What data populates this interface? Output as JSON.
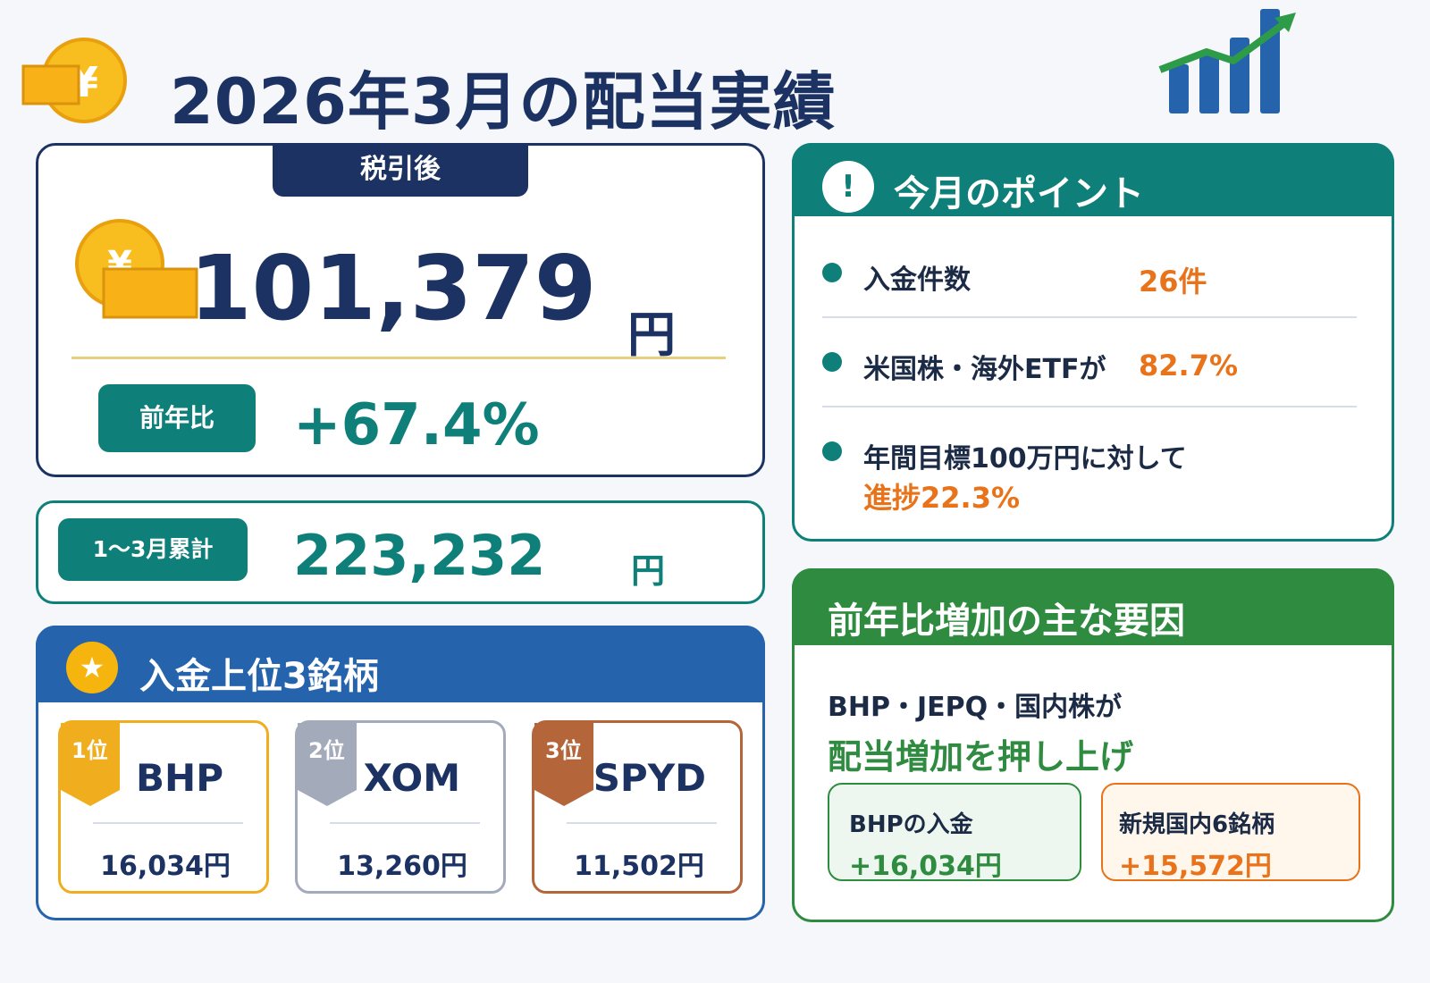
{
  "header": {
    "title": "2026年3月の配当実績",
    "coin_icon": "yen-coin-icon",
    "chart_icon": "growth-chart-icon"
  },
  "summary": {
    "badge": "税引後",
    "amount": "101,379",
    "unit": "円",
    "yoy_label": "前年比",
    "yoy_value": "+67.4%"
  },
  "cumulative": {
    "label": "1〜3月累計",
    "amount": "223,232",
    "unit": "円"
  },
  "top3": {
    "title": "入金上位3銘柄",
    "items": [
      {
        "rank": "1位",
        "ticker": "BHP",
        "amount": "16,034円",
        "color": "#f0ad1e"
      },
      {
        "rank": "2位",
        "ticker": "XOM",
        "amount": "13,260円",
        "color": "#a3abbb"
      },
      {
        "rank": "3位",
        "ticker": "SPYD",
        "amount": "11,502円",
        "color": "#b5653a"
      }
    ]
  },
  "points": {
    "title": "今月のポイント",
    "items": [
      {
        "label": "入金件数",
        "value": "26件"
      },
      {
        "label": "米国株・海外ETFが",
        "value": "82.7%"
      },
      {
        "label": "年間目標100万円に対して",
        "value": "進捗22.3%"
      }
    ]
  },
  "factors": {
    "title": "前年比増加の主な要因",
    "line1": "BHP・JEPQ・国内株が",
    "line2": "配当増加を押し上げ",
    "boxes": [
      {
        "label": "BHPの入金",
        "value": "+16,034円",
        "color": "#2e8b3f"
      },
      {
        "label": "新規国内6銘柄",
        "value": "+15,572円",
        "color": "#e8731a"
      }
    ]
  },
  "colors": {
    "navy": "#1b3263",
    "teal": "#0f7f7a",
    "blue": "#2563ac",
    "green": "#2e8b3f",
    "orange": "#e8731a",
    "gold": "#f5b50e"
  }
}
